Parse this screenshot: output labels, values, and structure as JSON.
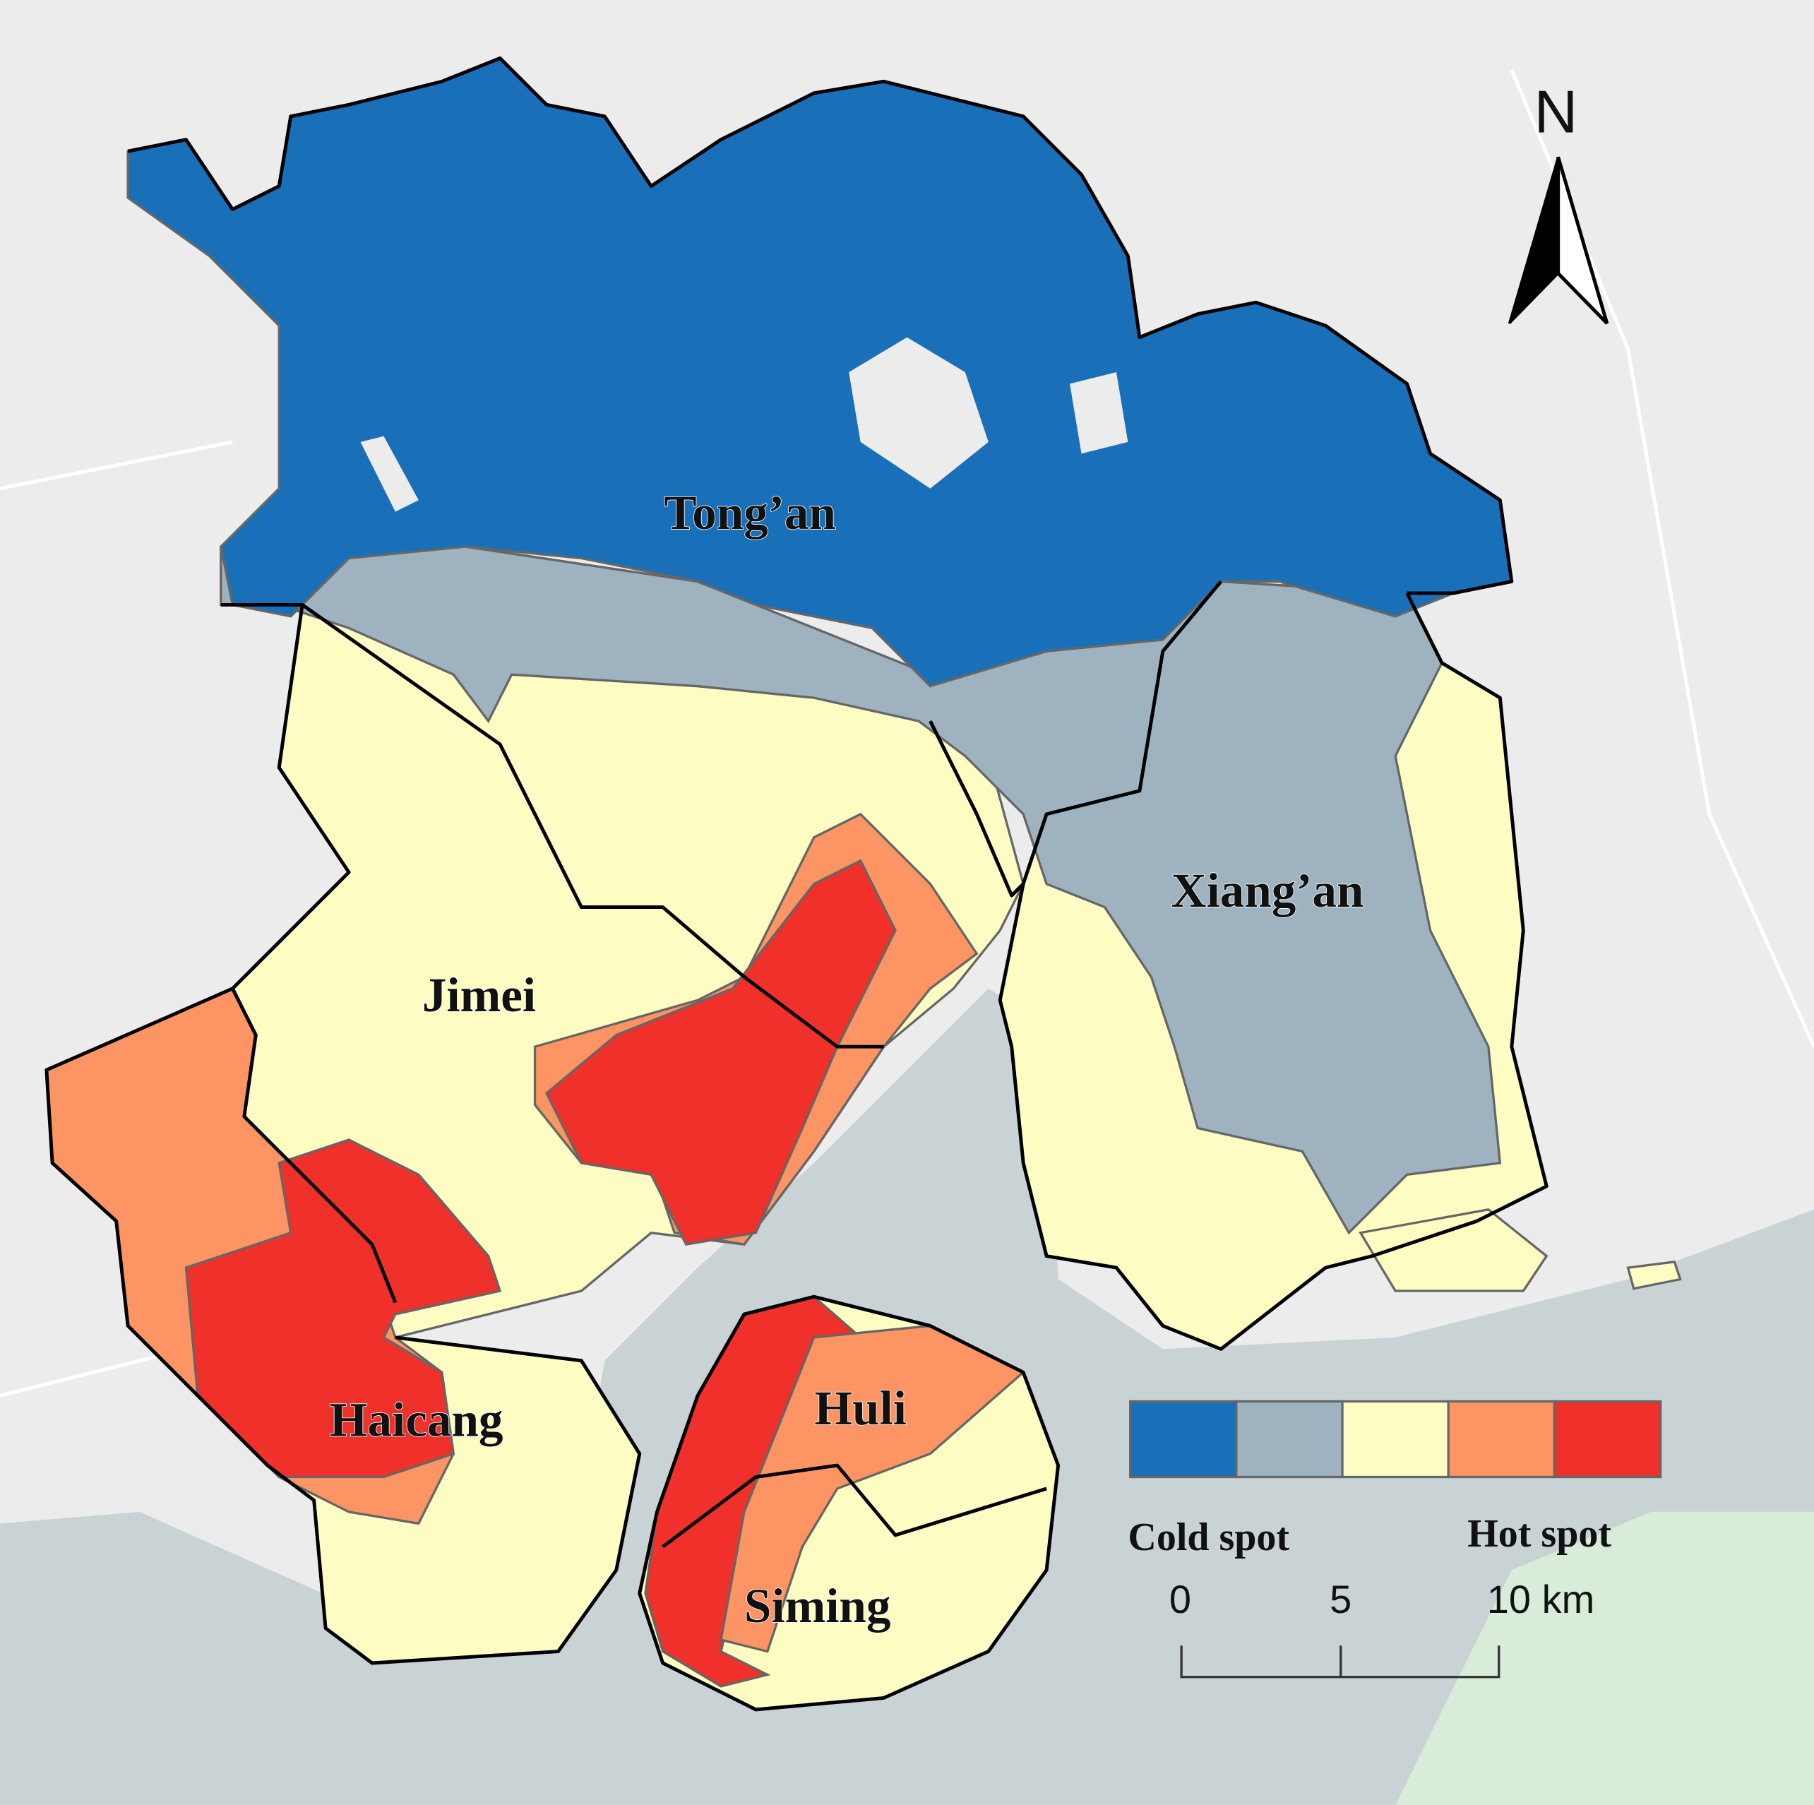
{
  "map": {
    "districts": [
      "Tong’an",
      "Xiang’an",
      "Jimei",
      "Haicang",
      "Huli",
      "Siming"
    ],
    "legend": {
      "colors": [
        "#1a70b8",
        "#9eb2bf",
        "#fdfcc2",
        "#fc9463",
        "#f0302a"
      ],
      "low_label": "Cold spot",
      "high_label": "Hot spot"
    },
    "scale_bar": {
      "labels": [
        "0",
        "5",
        "10 km"
      ]
    },
    "north_arrow": "N"
  }
}
